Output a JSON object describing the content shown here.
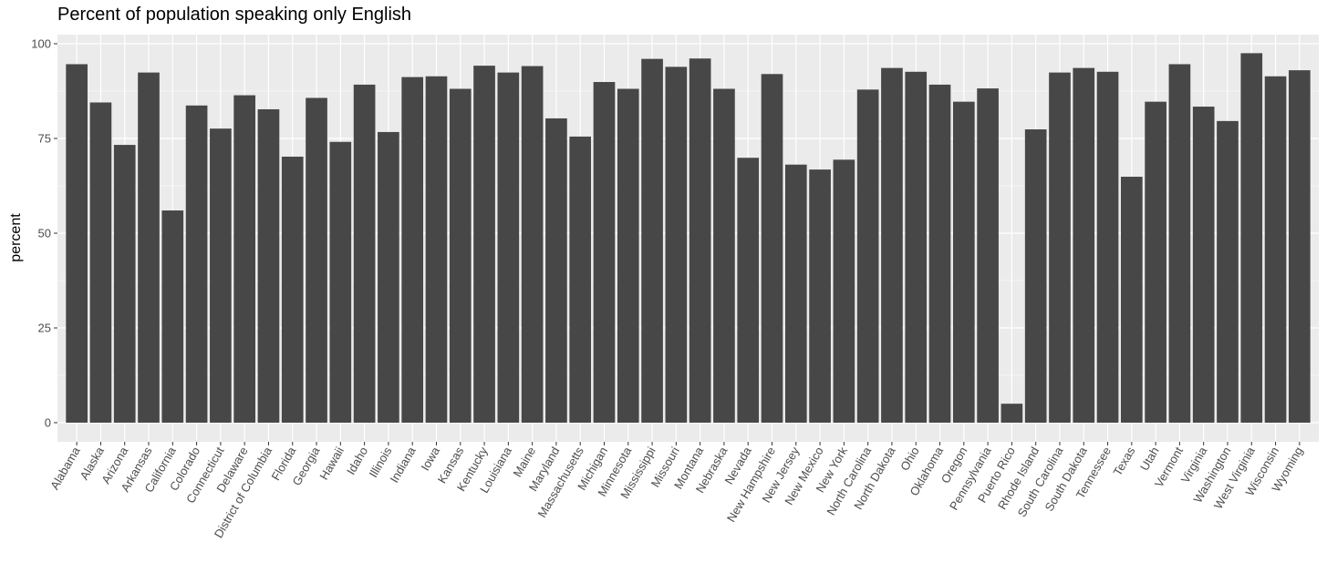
{
  "chart_data": {
    "type": "bar",
    "title": "Percent of population speaking only English",
    "xlabel": "",
    "ylabel": "percent",
    "ylim": [
      0,
      105
    ],
    "yticks": [
      0,
      25,
      50,
      75,
      100
    ],
    "grid": true,
    "bar_color": "#474747",
    "panel_color": "#ebebeb",
    "grid_color": "#ffffff",
    "categories": [
      "Alabama",
      "Alaska",
      "Arizona",
      "Arkansas",
      "California",
      "Colorado",
      "Connecticut",
      "Delaware",
      "District of Columbia",
      "Florida",
      "Georgia",
      "Hawaii",
      "Idaho",
      "Illinois",
      "Indiana",
      "Iowa",
      "Kansas",
      "Kentucky",
      "Louisiana",
      "Maine",
      "Maryland",
      "Massachusetts",
      "Michigan",
      "Minnesota",
      "Mississippi",
      "Missouri",
      "Montana",
      "Nebraska",
      "Nevada",
      "New Hampshire",
      "New Jersey",
      "New Mexico",
      "New York",
      "North Carolina",
      "North Dakota",
      "Ohio",
      "Oklahoma",
      "Oregon",
      "Pennsylvania",
      "Puerto Rico",
      "Rhode Island",
      "South Carolina",
      "South Dakota",
      "Tennessee",
      "Texas",
      "Utah",
      "Vermont",
      "Virginia",
      "Washington",
      "West Virginia",
      "Wisconsin",
      "Wyoming"
    ],
    "values": [
      94.6,
      84.5,
      73.3,
      92.4,
      56.0,
      83.7,
      77.6,
      86.4,
      82.7,
      70.2,
      85.7,
      74.1,
      89.2,
      76.7,
      91.2,
      91.4,
      88.1,
      94.2,
      92.4,
      94.1,
      80.3,
      75.5,
      89.9,
      88.1,
      96.0,
      93.9,
      96.1,
      88.1,
      69.9,
      92.0,
      68.1,
      66.8,
      69.4,
      87.9,
      93.6,
      92.6,
      89.2,
      84.7,
      88.2,
      5.0,
      77.4,
      92.4,
      93.6,
      92.6,
      64.9,
      84.7,
      94.6,
      83.4,
      79.6,
      97.5,
      91.4,
      93.0
    ]
  }
}
